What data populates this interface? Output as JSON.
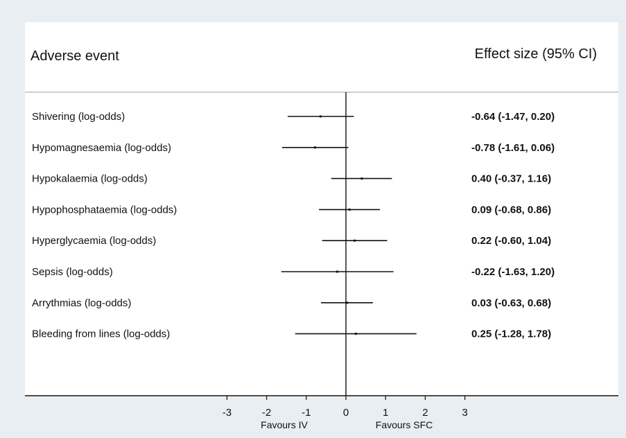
{
  "chart_data": {
    "type": "forest",
    "column_headers": {
      "label": "Adverse event",
      "effect": "Effect size (95% CI)"
    },
    "rows": [
      {
        "label": "Shivering (log-odds)",
        "estimate": -0.64,
        "lower": -1.47,
        "upper": 0.2,
        "effect_text": "-0.64 (-1.47, 0.20)"
      },
      {
        "label": "Hypomagnesaemia (log-odds)",
        "estimate": -0.78,
        "lower": -1.61,
        "upper": 0.06,
        "effect_text": "-0.78 (-1.61, 0.06)"
      },
      {
        "label": "Hypokalaemia (log-odds)",
        "estimate": 0.4,
        "lower": -0.37,
        "upper": 1.16,
        "effect_text": "0.40 (-0.37, 1.16)"
      },
      {
        "label": "Hypophosphataemia (log-odds)",
        "estimate": 0.09,
        "lower": -0.68,
        "upper": 0.86,
        "effect_text": "0.09 (-0.68, 0.86)"
      },
      {
        "label": "Hyperglycaemia (log-odds)",
        "estimate": 0.22,
        "lower": -0.6,
        "upper": 1.04,
        "effect_text": "0.22 (-0.60, 1.04)"
      },
      {
        "label": "Sepsis (log-odds)",
        "estimate": -0.22,
        "lower": -1.63,
        "upper": 1.2,
        "effect_text": "-0.22 (-1.63, 1.20)"
      },
      {
        "label": "Arrythmias (log-odds)",
        "estimate": 0.03,
        "lower": -0.63,
        "upper": 0.68,
        "effect_text": "0.03 (-0.63, 0.68)"
      },
      {
        "label": "Bleeding from lines (log-odds)",
        "estimate": 0.25,
        "lower": -1.28,
        "upper": 1.78,
        "effect_text": "0.25 (-1.28, 1.78)"
      }
    ],
    "x_ticks": [
      -3,
      -2,
      -1,
      0,
      1,
      2,
      3
    ],
    "xlim": [
      -3,
      3
    ],
    "reference_line": 0,
    "x_annotations": {
      "left": "Favours IV",
      "right": "Favours SFC"
    },
    "grid": false,
    "legend": "none",
    "colors": {
      "background": "#e8eef2",
      "panel": "#ffffff",
      "marks": "#111111",
      "header_rule": "#b0b0b0"
    }
  }
}
